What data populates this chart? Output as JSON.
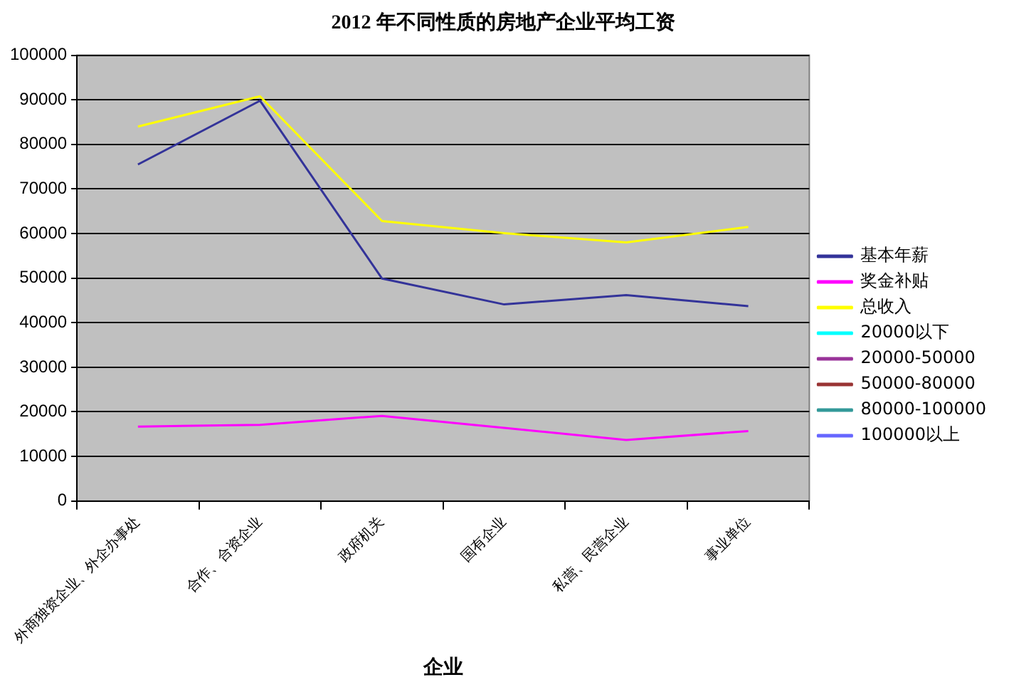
{
  "chart_data": {
    "type": "line",
    "title": "2012 年不同性质的房地产企业平均工资",
    "xlabel": "企业",
    "categories": [
      "外商独资企业、外企办事处",
      "合作、合资企业",
      "政府机关",
      "国有企业",
      "私营、民营企业",
      "事业单位"
    ],
    "series": [
      {
        "name": "基本年薪",
        "color": "#333399",
        "values": [
          75500,
          89800,
          49900,
          44100,
          46200,
          43700
        ]
      },
      {
        "name": "奖金补贴",
        "color": "#ff00ff",
        "values": [
          16700,
          17100,
          19100,
          16400,
          13700,
          15700
        ]
      },
      {
        "name": "总收入",
        "color": "#ffff00",
        "values": [
          84000,
          90800,
          62800,
          60100,
          58000,
          61500
        ]
      },
      {
        "name": "20000以下",
        "color": "#00ffff",
        "values": [
          null,
          null,
          null,
          null,
          null,
          null
        ]
      },
      {
        "name": "20000-50000",
        "color": "#993399",
        "values": [
          null,
          null,
          null,
          null,
          null,
          null
        ]
      },
      {
        "name": "50000-80000",
        "color": "#993333",
        "values": [
          null,
          null,
          null,
          null,
          null,
          null
        ]
      },
      {
        "name": "80000-100000",
        "color": "#339999",
        "values": [
          null,
          null,
          null,
          null,
          null,
          null
        ]
      },
      {
        "name": "100000以上",
        "color": "#6666ff",
        "values": [
          null,
          null,
          null,
          null,
          null,
          null
        ]
      }
    ],
    "ylim": [
      0,
      100000
    ],
    "yticks": [
      0,
      10000,
      20000,
      30000,
      40000,
      50000,
      60000,
      70000,
      80000,
      90000,
      100000
    ],
    "grid": "y",
    "legend": "right",
    "marker": "none",
    "line_style": "solid"
  }
}
